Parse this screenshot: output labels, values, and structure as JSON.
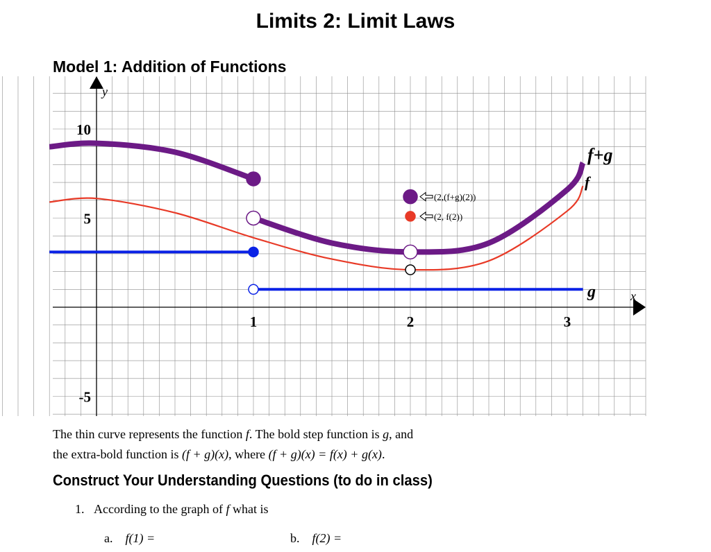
{
  "page": {
    "title": "Limits 2: Limit Laws",
    "model_heading": "Model 1: Addition of Functions"
  },
  "chart_data": {
    "type": "line",
    "xlabel": "x",
    "ylabel": "y",
    "x_ticks": [
      {
        "value": 1,
        "label": "1"
      },
      {
        "value": 2,
        "label": "2"
      },
      {
        "value": 3,
        "label": "3"
      }
    ],
    "y_ticks": [
      {
        "value": 10,
        "label": "10"
      },
      {
        "value": 5,
        "label": "5"
      },
      {
        "value": -5,
        "label": "-5"
      }
    ],
    "grid": true,
    "series": [
      {
        "name": "f",
        "color": "#e83a27",
        "style": "thin",
        "points": [
          [
            -0.3,
            5.9
          ],
          [
            0,
            6.1
          ],
          [
            0.5,
            5.3
          ],
          [
            1,
            3.9
          ],
          [
            1.5,
            2.7
          ],
          [
            2,
            2.1
          ],
          [
            2.5,
            2.6
          ],
          [
            3,
            5.4
          ],
          [
            3.1,
            6.8
          ]
        ]
      },
      {
        "name": "g",
        "color": "#0a22e6",
        "style": "bold step",
        "segments": [
          {
            "x": [
              -0.3,
              1
            ],
            "y": 3.1
          },
          {
            "x": [
              1,
              3.1
            ],
            "y": 1.0
          }
        ]
      },
      {
        "name": "f+g",
        "color": "#6c1a86",
        "style": "extra-bold",
        "points": [
          [
            -0.3,
            9.0
          ],
          [
            0,
            9.2
          ],
          [
            0.5,
            8.7
          ],
          [
            1,
            7.2
          ],
          [
            1,
            5.0
          ],
          [
            1.5,
            3.6
          ],
          [
            2,
            3.1
          ],
          [
            2.5,
            3.6
          ],
          [
            3,
            6.6
          ],
          [
            3.1,
            8.1
          ]
        ]
      }
    ],
    "points": [
      {
        "x": 1,
        "y": 7.2,
        "color": "#6c1a86",
        "filled": true
      },
      {
        "x": 1,
        "y": 5.0,
        "color": "#6c1a86",
        "filled": false
      },
      {
        "x": 1,
        "y": 3.1,
        "color": "#0a22e6",
        "filled": true
      },
      {
        "x": 1,
        "y": 1.0,
        "color": "#0a22e6",
        "filled": false
      },
      {
        "x": 2,
        "y": 3.1,
        "color": "#6c1a86",
        "filled": false
      },
      {
        "x": 2,
        "y": 2.1,
        "color": "#000000",
        "filled": false
      },
      {
        "x": 2,
        "y": 6.2,
        "color": "#6c1a86",
        "filled": true
      },
      {
        "x": 2,
        "y": 5.1,
        "color": "#e83a27",
        "filled": true
      }
    ],
    "annotations": [
      {
        "text": "(2,(f+g)(2))"
      },
      {
        "text": "(2, f(2))"
      }
    ],
    "curve_labels": [
      {
        "text": "f+g"
      },
      {
        "text": "f"
      },
      {
        "text": "g"
      }
    ]
  },
  "description": {
    "line1_a": "The thin curve represents the function ",
    "line1_f": "f",
    "line1_b": ". The bold step function is ",
    "line1_g": "g",
    "line1_c": ", and",
    "line2_a": "the extra-bold function is ",
    "line2_expr1": "(f + g)(x)",
    "line2_b": ", where ",
    "line2_expr2": "(f + g)(x) = f(x) + g(x)",
    "line2_c": "."
  },
  "section": {
    "heading": "Construct Your Understanding Questions (to do in class)"
  },
  "question1": {
    "number": "1.",
    "text_a": "According to the graph of ",
    "text_f": "f",
    "text_b": " what is",
    "part_a_label": "a.",
    "part_a_expr": "f(1) =",
    "part_b_label": "b.",
    "part_b_expr": "f(2) ="
  }
}
